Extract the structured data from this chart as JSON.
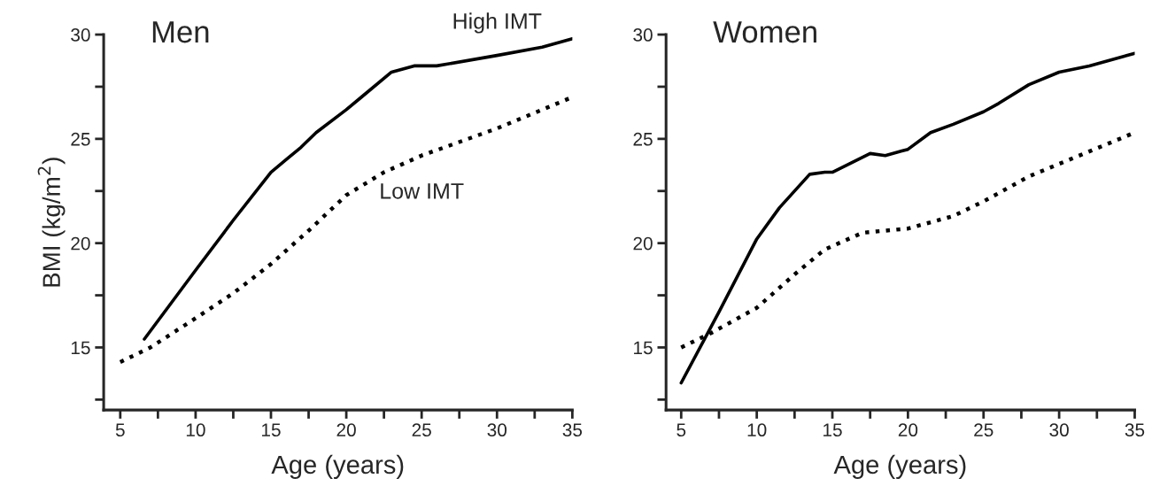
{
  "chart_data": [
    {
      "type": "line",
      "title": "Men",
      "xlabel": "Age (years)",
      "ylabel": "BMI (kg/m$^{2}$)",
      "xlim": [
        3.9,
        35
      ],
      "ylim": [
        12,
        30
      ],
      "xticks": [
        5,
        {
          "value": 7.5,
          "label": null
        },
        10,
        {
          "value": 12.5,
          "label": null
        },
        15,
        {
          "value": 17.5,
          "label": null
        },
        20,
        {
          "value": 22.5,
          "label": null
        },
        25,
        {
          "value": 27.5,
          "label": null
        },
        30,
        {
          "value": 32.5,
          "label": null
        },
        35
      ],
      "yticks": [
        {
          "value": 12.5,
          "label": null
        },
        15,
        {
          "value": 17.5,
          "label": null
        },
        20,
        {
          "value": 22.5,
          "label": null
        },
        25,
        {
          "value": 27.5,
          "label": null
        },
        30
      ],
      "grid": false,
      "legend": false,
      "series": [
        {
          "name": "High IMT",
          "color": "#000000",
          "line_style": "solid",
          "x": [
            6.6,
            10,
            12.5,
            15,
            16,
            17,
            18,
            20,
            21,
            23,
            24.5,
            26,
            30,
            33,
            35
          ],
          "values": [
            15.4,
            18.7,
            21.1,
            23.4,
            24.0,
            24.6,
            25.3,
            26.4,
            27.0,
            28.2,
            28.5,
            28.5,
            29.0,
            29.4,
            29.8
          ]
        },
        {
          "name": "Low IMT",
          "color": "#000000",
          "line_style": "dotted",
          "x": [
            5,
            7,
            10,
            12.5,
            15,
            17.5,
            20,
            22.5,
            25,
            30,
            35
          ],
          "values": [
            14.3,
            15.0,
            16.4,
            17.6,
            19.0,
            20.6,
            22.3,
            23.4,
            24.2,
            25.5,
            27.0
          ]
        }
      ]
    },
    {
      "type": "line",
      "title": "Women",
      "xlabel": "Age (years)",
      "xlim": [
        4,
        35
      ],
      "ylim": [
        12,
        30
      ],
      "xticks": [
        5,
        {
          "value": 7.5,
          "label": null
        },
        10,
        {
          "value": 12.5,
          "label": null
        },
        15,
        {
          "value": 17.5,
          "label": null
        },
        20,
        {
          "value": 22.5,
          "label": null
        },
        25,
        {
          "value": 27.5,
          "label": null
        },
        30,
        {
          "value": 32.5,
          "label": null
        },
        35
      ],
      "yticks": [
        {
          "value": 12.5,
          "label": null
        },
        15,
        {
          "value": 17.5,
          "label": null
        },
        20,
        {
          "value": 22.5,
          "label": null
        },
        25,
        {
          "value": 27.5,
          "label": null
        },
        30
      ],
      "grid": false,
      "legend": false,
      "series": [
        {
          "color": "#000000",
          "line_style": "solid",
          "x": [
            5,
            7.5,
            10,
            11.5,
            13.5,
            14.5,
            15,
            17.5,
            18.5,
            20,
            21.5,
            23,
            25,
            26,
            28,
            30,
            32,
            35
          ],
          "values": [
            13.3,
            16.7,
            20.2,
            21.7,
            23.3,
            23.4,
            23.4,
            24.3,
            24.2,
            24.5,
            25.3,
            25.7,
            26.3,
            26.7,
            27.6,
            28.2,
            28.5,
            29.1
          ]
        },
        {
          "color": "#000000",
          "line_style": "dotted",
          "x": [
            5,
            7,
            10,
            12.5,
            14.5,
            17,
            20,
            23,
            25,
            28,
            30,
            35
          ],
          "values": [
            15.0,
            15.7,
            16.9,
            18.5,
            19.7,
            20.5,
            20.7,
            21.3,
            22.0,
            23.2,
            23.8,
            25.3
          ]
        }
      ]
    }
  ]
}
